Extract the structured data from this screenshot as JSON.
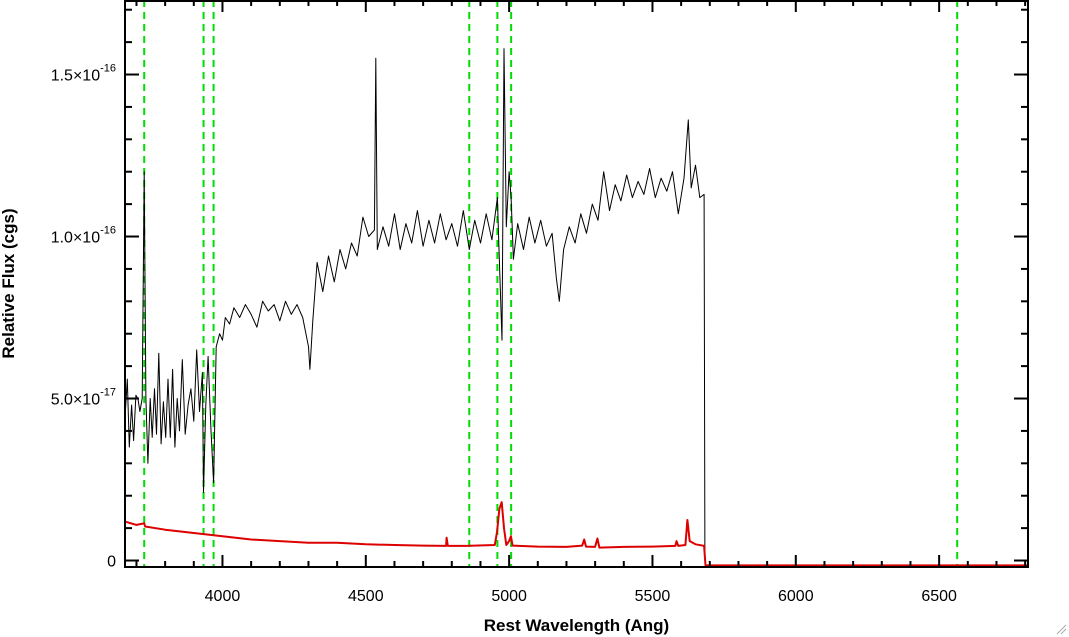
{
  "chart_data": {
    "type": "line",
    "title": "",
    "xlabel": "Rest Wavelength (Ang)",
    "ylabel": "Relative Flux (cgs)",
    "xlim": [
      3660,
      6810
    ],
    "ylim": [
      -2e-18,
      1.73e-16
    ],
    "x_ticks": [
      {
        "value": 4000,
        "label": "4000"
      },
      {
        "value": 4500,
        "label": "4500"
      },
      {
        "value": 5000,
        "label": "5000"
      },
      {
        "value": 5500,
        "label": "5500"
      },
      {
        "value": 6000,
        "label": "6000"
      },
      {
        "value": 6500,
        "label": "6500"
      }
    ],
    "y_ticks": [
      {
        "value": 0,
        "mantissa": "0",
        "exponent": ""
      },
      {
        "value": 5e-17,
        "mantissa": "5.0×10",
        "exponent": "-17"
      },
      {
        "value": 1e-16,
        "mantissa": "1.0×10",
        "exponent": "-16"
      },
      {
        "value": 1.5e-16,
        "mantissa": "1.5×10",
        "exponent": "-16"
      }
    ],
    "vertical_lines": {
      "color": "#00dd00",
      "x": [
        3727,
        3934,
        3969,
        4861,
        4959,
        5007,
        6563
      ]
    },
    "series": [
      {
        "color": "#000000",
        "points": [
          [
            3660,
            4.4e-17
          ],
          [
            3668,
            5.6e-17
          ],
          [
            3675,
            3.5e-17
          ],
          [
            3683,
            4.8e-17
          ],
          [
            3690,
            3.7e-17
          ],
          [
            3698,
            5.1e-17
          ],
          [
            3705,
            5e-17
          ],
          [
            3712,
            4.6e-17
          ],
          [
            3720,
            5e-17
          ],
          [
            3727,
            1.2e-16
          ],
          [
            3733,
            5e-17
          ],
          [
            3740,
            3e-17
          ],
          [
            3748,
            5e-17
          ],
          [
            3755,
            3.8e-17
          ],
          [
            3763,
            5.3e-17
          ],
          [
            3770,
            3.9e-17
          ],
          [
            3778,
            6.4e-17
          ],
          [
            3786,
            3.6e-17
          ],
          [
            3794,
            4.9e-17
          ],
          [
            3802,
            3.8e-17
          ],
          [
            3810,
            5.6e-17
          ],
          [
            3818,
            3.8e-17
          ],
          [
            3826,
            5.9e-17
          ],
          [
            3834,
            3.5e-17
          ],
          [
            3842,
            5e-17
          ],
          [
            3850,
            4e-17
          ],
          [
            3860,
            6.2e-17
          ],
          [
            3870,
            3.9e-17
          ],
          [
            3880,
            4.8e-17
          ],
          [
            3890,
            5.3e-17
          ],
          [
            3900,
            4.3e-17
          ],
          [
            3910,
            6.5e-17
          ],
          [
            3920,
            4.6e-17
          ],
          [
            3930,
            5.8e-17
          ],
          [
            3934,
            2.1e-17
          ],
          [
            3942,
            4.8e-17
          ],
          [
            3950,
            6.3e-17
          ],
          [
            3960,
            4e-17
          ],
          [
            3969,
            2.4e-17
          ],
          [
            3978,
            6.6e-17
          ],
          [
            3990,
            7e-17
          ],
          [
            4000,
            6.8e-17
          ],
          [
            4010,
            7.5e-17
          ],
          [
            4025,
            7.3e-17
          ],
          [
            4040,
            7.8e-17
          ],
          [
            4060,
            7.5e-17
          ],
          [
            4080,
            7.9e-17
          ],
          [
            4100,
            7.6e-17
          ],
          [
            4120,
            7.2e-17
          ],
          [
            4140,
            8e-17
          ],
          [
            4160,
            7.7e-17
          ],
          [
            4180,
            7.9e-17
          ],
          [
            4200,
            7.4e-17
          ],
          [
            4220,
            8e-17
          ],
          [
            4240,
            7.6e-17
          ],
          [
            4260,
            7.9e-17
          ],
          [
            4280,
            7.5e-17
          ],
          [
            4300,
            6.6e-17
          ],
          [
            4305,
            5.9e-17
          ],
          [
            4315,
            7.4e-17
          ],
          [
            4330,
            9.2e-17
          ],
          [
            4350,
            8.3e-17
          ],
          [
            4370,
            9.4e-17
          ],
          [
            4390,
            8.6e-17
          ],
          [
            4410,
            9.6e-17
          ],
          [
            4430,
            9e-17
          ],
          [
            4450,
            9.8e-17
          ],
          [
            4470,
            9.4e-17
          ],
          [
            4490,
            1.06e-16
          ],
          [
            4510,
            1e-16
          ],
          [
            4530,
            1.02e-16
          ],
          [
            4535,
            1.55e-16
          ],
          [
            4540,
            9.6e-17
          ],
          [
            4560,
            1.03e-16
          ],
          [
            4580,
            9.7e-17
          ],
          [
            4600,
            1.07e-16
          ],
          [
            4620,
            9.6e-17
          ],
          [
            4640,
            1.04e-16
          ],
          [
            4660,
            9.8e-17
          ],
          [
            4680,
            1.08e-16
          ],
          [
            4700,
            9.7e-17
          ],
          [
            4720,
            1.05e-16
          ],
          [
            4740,
            9.8e-17
          ],
          [
            4760,
            1.07e-16
          ],
          [
            4780,
            9.9e-17
          ],
          [
            4800,
            1.04e-16
          ],
          [
            4820,
            9.7e-17
          ],
          [
            4840,
            1.08e-16
          ],
          [
            4861,
            9.6e-17
          ],
          [
            4880,
            1.05e-16
          ],
          [
            4900,
            9.8e-17
          ],
          [
            4920,
            1.07e-16
          ],
          [
            4940,
            9.9e-17
          ],
          [
            4959,
            1.12e-16
          ],
          [
            4965,
            9.5e-17
          ],
          [
            4975,
            6.8e-17
          ],
          [
            4982,
            1.58e-16
          ],
          [
            4990,
            1.03e-16
          ],
          [
            5000,
            1.2e-16
          ],
          [
            5007,
            1.12e-16
          ],
          [
            5015,
            9.3e-17
          ],
          [
            5030,
            1.04e-16
          ],
          [
            5050,
            9.6e-17
          ],
          [
            5070,
            1.06e-16
          ],
          [
            5090,
            9.8e-17
          ],
          [
            5110,
            1.05e-16
          ],
          [
            5130,
            9.7e-17
          ],
          [
            5150,
            1.01e-16
          ],
          [
            5165,
            8.7e-17
          ],
          [
            5175,
            8e-17
          ],
          [
            5190,
            9.6e-17
          ],
          [
            5210,
            1.03e-16
          ],
          [
            5230,
            9.8e-17
          ],
          [
            5250,
            1.07e-16
          ],
          [
            5270,
            1.01e-16
          ],
          [
            5290,
            1.1e-16
          ],
          [
            5310,
            1.05e-16
          ],
          [
            5330,
            1.2e-16
          ],
          [
            5350,
            1.08e-16
          ],
          [
            5370,
            1.16e-16
          ],
          [
            5390,
            1.11e-16
          ],
          [
            5410,
            1.19e-16
          ],
          [
            5430,
            1.12e-16
          ],
          [
            5450,
            1.17e-16
          ],
          [
            5470,
            1.13e-16
          ],
          [
            5490,
            1.21e-16
          ],
          [
            5510,
            1.12e-16
          ],
          [
            5530,
            1.18e-16
          ],
          [
            5550,
            1.14e-16
          ],
          [
            5570,
            1.2e-16
          ],
          [
            5590,
            1.07e-16
          ],
          [
            5610,
            1.18e-16
          ],
          [
            5625,
            1.36e-16
          ],
          [
            5635,
            1.15e-16
          ],
          [
            5650,
            1.22e-16
          ],
          [
            5665,
            1.12e-16
          ],
          [
            5680,
            1.13e-16
          ],
          [
            5683,
            0.0
          ]
        ]
      },
      {
        "color": "#dd0000",
        "points": [
          [
            3660,
            1.2e-17
          ],
          [
            3700,
            1.1e-17
          ],
          [
            3727,
            1.15e-17
          ],
          [
            3730,
            1.05e-17
          ],
          [
            3800,
            9.5e-18
          ],
          [
            3900,
            8.5e-18
          ],
          [
            4000,
            7.5e-18
          ],
          [
            4100,
            6.5e-18
          ],
          [
            4200,
            6e-18
          ],
          [
            4300,
            5.5e-18
          ],
          [
            4400,
            5.5e-18
          ],
          [
            4500,
            5e-18
          ],
          [
            4600,
            4.8e-18
          ],
          [
            4700,
            4.6e-18
          ],
          [
            4780,
            4.5e-18
          ],
          [
            4782,
            7e-18
          ],
          [
            4786,
            4.5e-18
          ],
          [
            4850,
            4.5e-18
          ],
          [
            4950,
            4.8e-18
          ],
          [
            4958,
            9e-18
          ],
          [
            4966,
            1.6e-17
          ],
          [
            4974,
            1.8e-17
          ],
          [
            4982,
            1e-17
          ],
          [
            4990,
            4.8e-18
          ],
          [
            5000,
            6e-18
          ],
          [
            5006,
            7.5e-18
          ],
          [
            5012,
            4.6e-18
          ],
          [
            5100,
            4.3e-18
          ],
          [
            5200,
            4.2e-18
          ],
          [
            5255,
            4.6e-18
          ],
          [
            5262,
            6.5e-18
          ],
          [
            5268,
            4.3e-18
          ],
          [
            5300,
            4.2e-18
          ],
          [
            5308,
            6.8e-18
          ],
          [
            5315,
            4e-18
          ],
          [
            5400,
            4.2e-18
          ],
          [
            5500,
            4.3e-18
          ],
          [
            5580,
            4.5e-18
          ],
          [
            5584,
            6e-18
          ],
          [
            5590,
            4.5e-18
          ],
          [
            5615,
            4.8e-18
          ],
          [
            5622,
            1.25e-17
          ],
          [
            5630,
            6e-18
          ],
          [
            5650,
            5e-18
          ],
          [
            5680,
            4.5e-18
          ],
          [
            5685,
            -1.5e-18
          ],
          [
            6000,
            -1.5e-18
          ],
          [
            6810,
            -1.5e-18
          ]
        ]
      }
    ],
    "grid": false,
    "legend": "none"
  }
}
